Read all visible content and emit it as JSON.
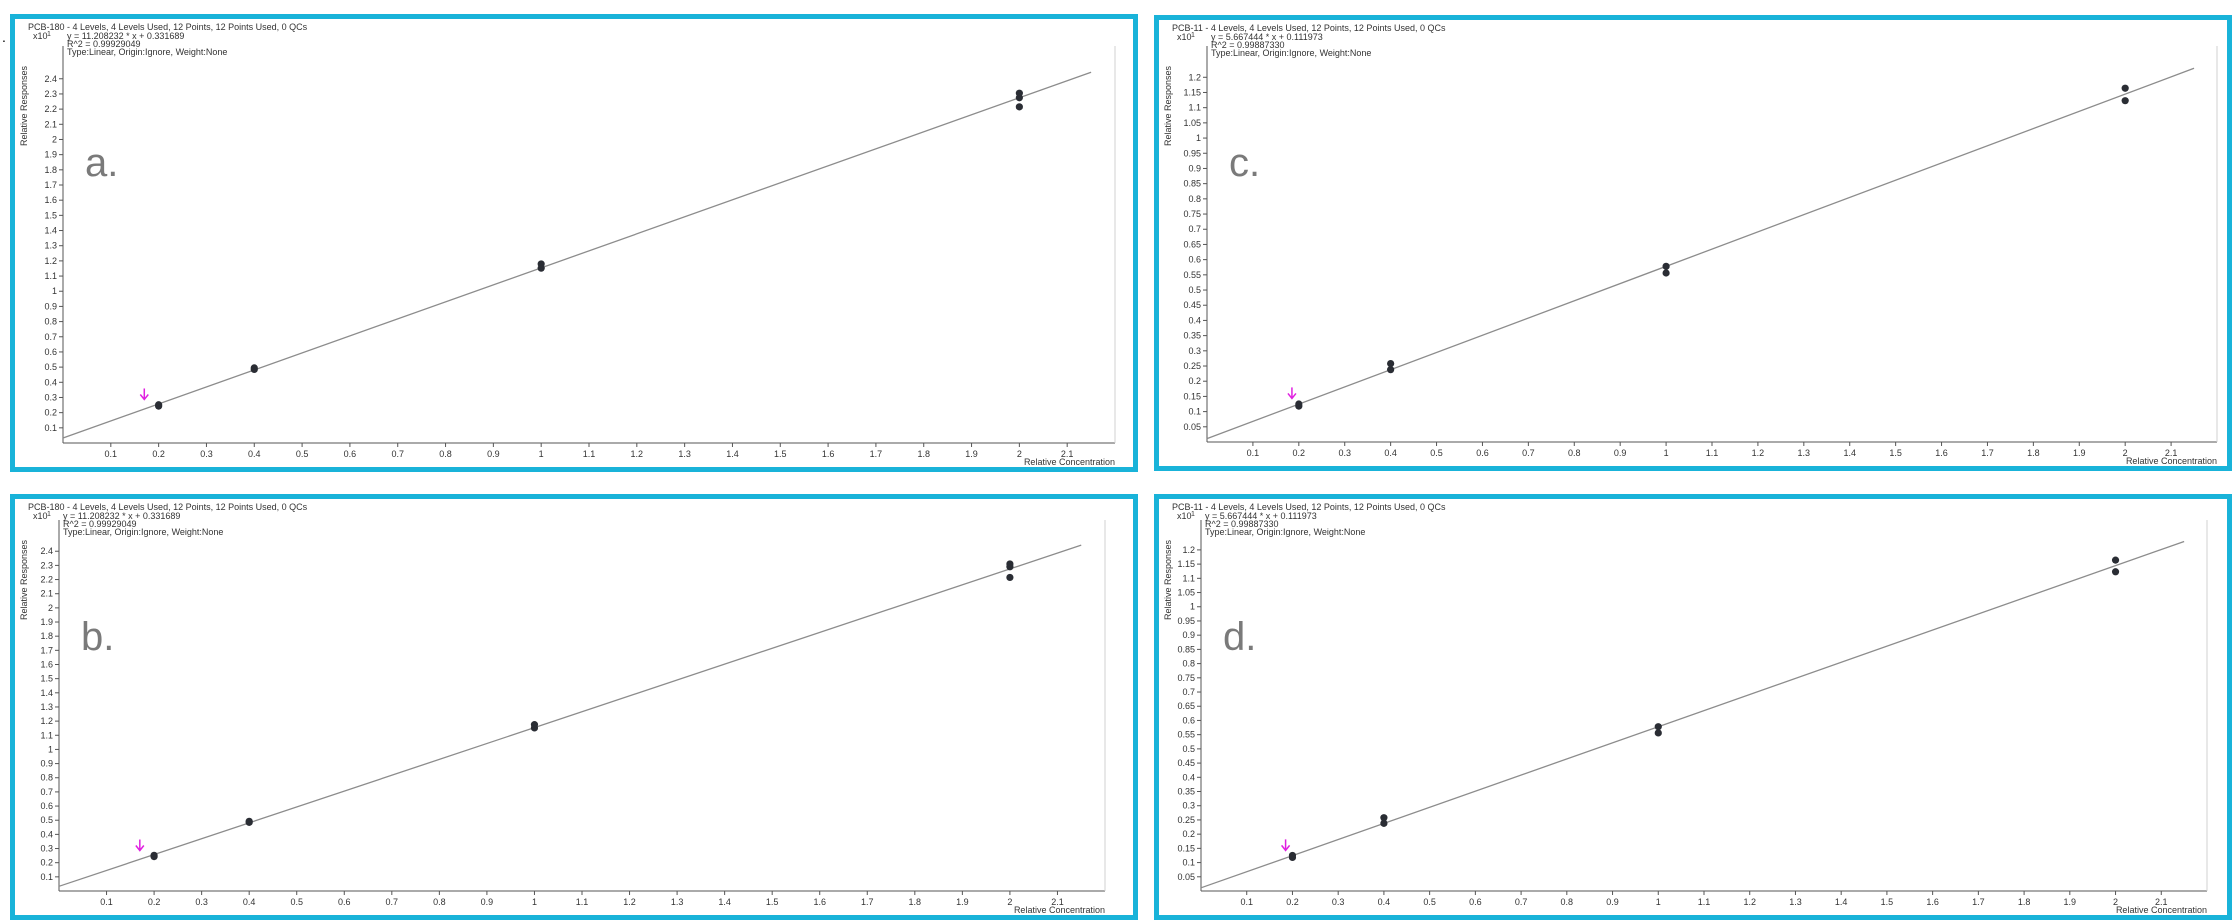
{
  "page_mark": ".",
  "colors": {
    "panel_border": "#19b3d9",
    "fit_line": "#8c8c8c",
    "point": "#2a2d34",
    "marker": "#e020e0",
    "axis": "#555555"
  },
  "chart_data": [
    {
      "id": "a",
      "type": "scatter",
      "panel_letter": "a.",
      "title": "PCB-180 - 4 Levels, 4 Levels Used, 12 Points, 12 Points Used, 0 QCs",
      "equation": "y = 11.208232 * x + 0.331689",
      "r2": "R^2 = 0.99929049",
      "fit_type": "Type:Linear, Origin:Ignore, Weight:None",
      "multiplier": "x10",
      "multiplier_exp": "1",
      "xlabel": "Relative Concentration",
      "ylabel": "Relative Responses",
      "xlim": [
        0,
        2.2
      ],
      "ylim": [
        0,
        2.55
      ],
      "x_ticks": [
        "0.1",
        "0.2",
        "0.3",
        "0.4",
        "0.5",
        "0.6",
        "0.7",
        "0.8",
        "0.9",
        "1",
        "1.1",
        "1.2",
        "1.3",
        "1.4",
        "1.5",
        "1.6",
        "1.7",
        "1.8",
        "1.9",
        "2",
        "2.1"
      ],
      "y_ticks": [
        "0.1",
        "0.2",
        "0.3",
        "0.4",
        "0.5",
        "0.6",
        "0.7",
        "0.8",
        "0.9",
        "1",
        "1.1",
        "1.2",
        "1.3",
        "1.4",
        "1.5",
        "1.6",
        "1.7",
        "1.8",
        "1.9",
        "2",
        "2.1",
        "2.2",
        "2.3",
        "2.4"
      ],
      "fit": {
        "slope": 1.1208232,
        "intercept": 0.0331689
      },
      "points": [
        {
          "x": 0.2,
          "y": 0.243
        },
        {
          "x": 0.2,
          "y": 0.252
        },
        {
          "x": 0.4,
          "y": 0.485
        },
        {
          "x": 0.4,
          "y": 0.495
        },
        {
          "x": 1.0,
          "y": 1.152
        },
        {
          "x": 1.0,
          "y": 1.18
        },
        {
          "x": 2.0,
          "y": 2.215
        },
        {
          "x": 2.0,
          "y": 2.275
        },
        {
          "x": 2.0,
          "y": 2.305
        }
      ],
      "marker": {
        "x": 0.17,
        "y": 0.3
      }
    },
    {
      "id": "c",
      "type": "scatter",
      "panel_letter": "c.",
      "title": "PCB-11 - 4 Levels, 4 Levels Used, 12 Points, 12 Points Used, 0 QCs",
      "equation": "y = 5.667444 * x + 0.111973",
      "r2": "R^2 = 0.99887330",
      "fit_type": "Type:Linear, Origin:Ignore, Weight:None",
      "multiplier": "x10",
      "multiplier_exp": "1",
      "xlabel": "Relative Concentration",
      "ylabel": "Relative Responses",
      "xlim": [
        0,
        2.2
      ],
      "ylim": [
        0,
        1.27
      ],
      "x_ticks": [
        "0.1",
        "0.2",
        "0.3",
        "0.4",
        "0.5",
        "0.6",
        "0.7",
        "0.8",
        "0.9",
        "1",
        "1.1",
        "1.2",
        "1.3",
        "1.4",
        "1.5",
        "1.6",
        "1.7",
        "1.8",
        "1.9",
        "2",
        "2.1"
      ],
      "y_ticks": [
        "0.05",
        "0.1",
        "0.15",
        "0.2",
        "0.25",
        "0.3",
        "0.35",
        "0.4",
        "0.45",
        "0.5",
        "0.55",
        "0.6",
        "0.65",
        "0.7",
        "0.75",
        "0.8",
        "0.85",
        "0.9",
        "0.95",
        "1",
        "1.05",
        "1.1",
        "1.15",
        "1.2"
      ],
      "fit": {
        "slope": 0.5667444,
        "intercept": 0.0111973
      },
      "points": [
        {
          "x": 0.2,
          "y": 0.118
        },
        {
          "x": 0.2,
          "y": 0.125
        },
        {
          "x": 0.4,
          "y": 0.238
        },
        {
          "x": 0.4,
          "y": 0.258
        },
        {
          "x": 1.0,
          "y": 0.556
        },
        {
          "x": 1.0,
          "y": 0.578
        },
        {
          "x": 2.0,
          "y": 1.123
        },
        {
          "x": 2.0,
          "y": 1.164
        }
      ],
      "marker": {
        "x": 0.185,
        "y": 0.15
      }
    },
    {
      "id": "b",
      "type": "scatter",
      "panel_letter": "b.",
      "title": "PCB-180 - 4 Levels, 4 Levels Used, 12 Points, 12 Points Used, 0 QCs",
      "equation": "y = 11.208232 * x + 0.331689",
      "r2": "R^2 = 0.99929049",
      "fit_type": "Type:Linear, Origin:Ignore, Weight:None",
      "multiplier": "x10",
      "multiplier_exp": "1",
      "xlabel": "Relative Concentration",
      "ylabel": "Relative Responses",
      "xlim": [
        0,
        2.2
      ],
      "ylim": [
        0,
        2.55
      ],
      "x_ticks": [
        "0.1",
        "0.2",
        "0.3",
        "0.4",
        "0.5",
        "0.6",
        "0.7",
        "0.8",
        "0.9",
        "1",
        "1.1",
        "1.2",
        "1.3",
        "1.4",
        "1.5",
        "1.6",
        "1.7",
        "1.8",
        "1.9",
        "2",
        "2.1"
      ],
      "y_ticks": [
        "0.1",
        "0.2",
        "0.3",
        "0.4",
        "0.5",
        "0.6",
        "0.7",
        "0.8",
        "0.9",
        "1",
        "1.1",
        "1.2",
        "1.3",
        "1.4",
        "1.5",
        "1.6",
        "1.7",
        "1.8",
        "1.9",
        "2",
        "2.1",
        "2.2",
        "2.3",
        "2.4"
      ],
      "fit": {
        "slope": 1.1208232,
        "intercept": 0.0331689
      },
      "points": [
        {
          "x": 0.2,
          "y": 0.243
        },
        {
          "x": 0.2,
          "y": 0.252
        },
        {
          "x": 0.4,
          "y": 0.485
        },
        {
          "x": 0.4,
          "y": 0.492
        },
        {
          "x": 1.0,
          "y": 1.152
        },
        {
          "x": 1.0,
          "y": 1.175
        },
        {
          "x": 2.0,
          "y": 2.215
        },
        {
          "x": 2.0,
          "y": 2.29
        },
        {
          "x": 2.0,
          "y": 2.31
        }
      ],
      "marker": {
        "x": 0.17,
        "y": 0.3
      }
    },
    {
      "id": "d",
      "type": "scatter",
      "panel_letter": "d.",
      "title": "PCB-11 - 4 Levels, 4 Levels Used, 12 Points, 12 Points Used, 0 QCs",
      "equation": "y = 5.667444 * x + 0.111973",
      "r2": "R^2 = 0.99887330",
      "fit_type": "Type:Linear, Origin:Ignore, Weight:None",
      "multiplier": "x10",
      "multiplier_exp": "1",
      "xlabel": "Relative Concentration",
      "ylabel": "Relative Responses",
      "xlim": [
        0,
        2.2
      ],
      "ylim": [
        0,
        1.27
      ],
      "x_ticks": [
        "0.1",
        "0.2",
        "0.3",
        "0.4",
        "0.5",
        "0.6",
        "0.7",
        "0.8",
        "0.9",
        "1",
        "1.1",
        "1.2",
        "1.3",
        "1.4",
        "1.5",
        "1.6",
        "1.7",
        "1.8",
        "1.9",
        "2",
        "2.1"
      ],
      "y_ticks": [
        "0.05",
        "0.1",
        "0.15",
        "0.2",
        "0.25",
        "0.3",
        "0.35",
        "0.4",
        "0.45",
        "0.5",
        "0.55",
        "0.6",
        "0.65",
        "0.7",
        "0.75",
        "0.8",
        "0.85",
        "0.9",
        "0.95",
        "1",
        "1.05",
        "1.1",
        "1.15",
        "1.2"
      ],
      "fit": {
        "slope": 0.5667444,
        "intercept": 0.0111973
      },
      "points": [
        {
          "x": 0.2,
          "y": 0.118
        },
        {
          "x": 0.2,
          "y": 0.125
        },
        {
          "x": 0.4,
          "y": 0.238
        },
        {
          "x": 0.4,
          "y": 0.258
        },
        {
          "x": 1.0,
          "y": 0.556
        },
        {
          "x": 1.0,
          "y": 0.578
        },
        {
          "x": 2.0,
          "y": 1.123
        },
        {
          "x": 2.0,
          "y": 1.164
        }
      ],
      "marker": {
        "x": 0.185,
        "y": 0.15
      }
    }
  ]
}
